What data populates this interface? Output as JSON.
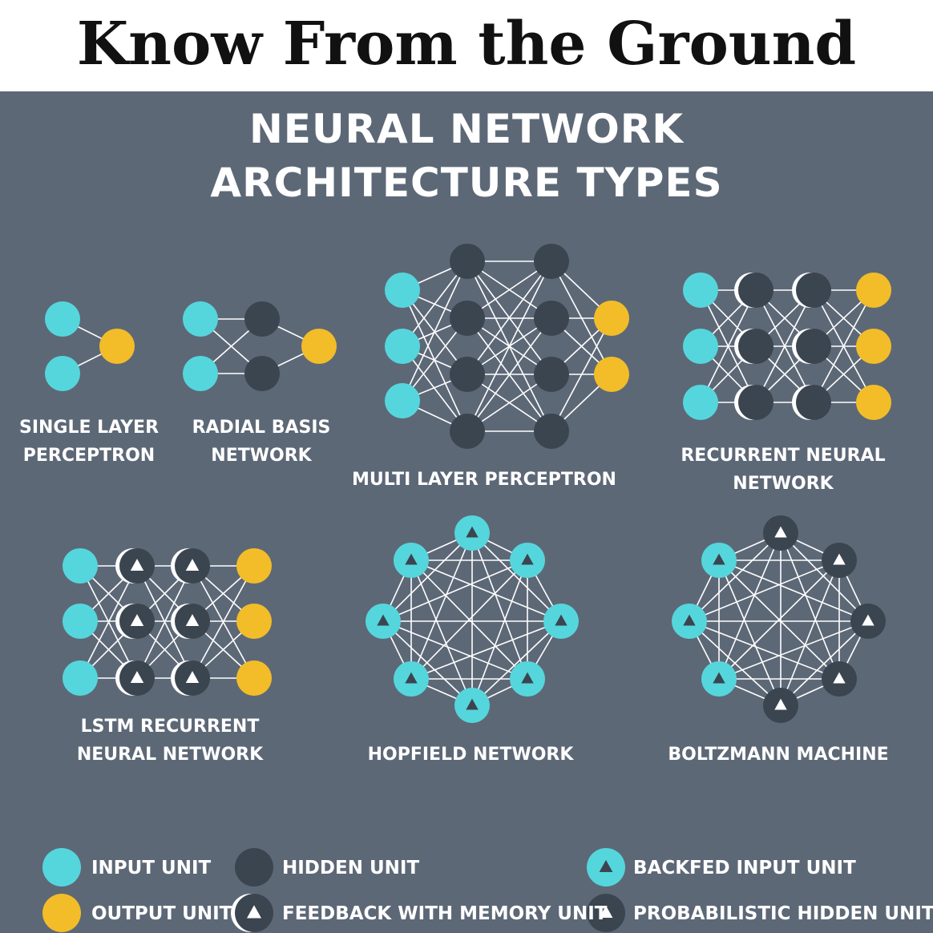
{
  "header": {
    "title": "Know From the Ground"
  },
  "infographic": {
    "title_line1": "NEURAL NETWORK",
    "title_line2": "ARCHITECTURE TYPES"
  },
  "networks": {
    "single_layer": {
      "label1": "SINGLE LAYER",
      "label2": "PERCEPTRON"
    },
    "radial_basis": {
      "label1": "RADIAL BASIS",
      "label2": "NETWORK"
    },
    "multi_layer": {
      "label1": "MULTI LAYER PERCEPTRON"
    },
    "recurrent": {
      "label1": "RECURRENT NEURAL",
      "label2": "NETWORK"
    },
    "lstm": {
      "label1": "LSTM RECURRENT",
      "label2": "NEURAL NETWORK"
    },
    "hopfield": {
      "label1": "HOPFIELD NETWORK"
    },
    "boltzmann": {
      "label1": "BOLTZMANN MACHINE"
    }
  },
  "legend": {
    "input_unit": "INPUT UNIT",
    "output_unit": "OUTPUT UNIT",
    "hidden_unit": "HIDDEN UNIT",
    "feedback_memory_unit": "FEEDBACK WITH MEMORY UNIT",
    "backfed_input_unit": "BACKFED INPUT UNIT",
    "probabilistic_hidden_unit": "PROBABILISTIC HIDDEN UNIT"
  },
  "colors": {
    "background": "#5d6877",
    "input": "#55d6dc",
    "output": "#f2bd28",
    "hidden": "#3b4550",
    "edge": "#ffffff"
  }
}
